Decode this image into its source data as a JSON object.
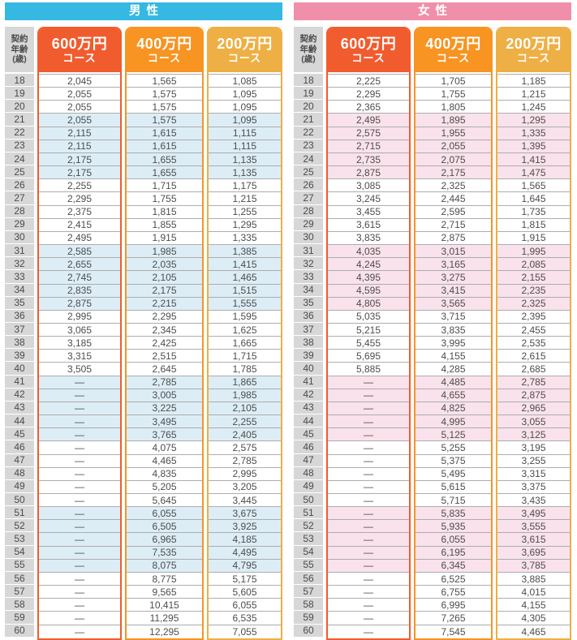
{
  "tables": [
    {
      "id": "male",
      "banner": "男性",
      "banner_color": "#35b8e1",
      "highlight_color": "#dcedf6",
      "age_header_lines": [
        "契約",
        "年齢",
        "(歳)"
      ],
      "columns": [
        {
          "amount": "600万円",
          "course": "コース",
          "color": "#f15c2f"
        },
        {
          "amount": "400万円",
          "course": "コース",
          "color": "#f79422"
        },
        {
          "amount": "200万円",
          "course": "コース",
          "color": "#eeaf44"
        }
      ],
      "rows": [
        {
          "age": "18",
          "values": [
            "2,045",
            "1,565",
            "1,085"
          ],
          "highlight": false
        },
        {
          "age": "19",
          "values": [
            "2,055",
            "1,575",
            "1,095"
          ],
          "highlight": false
        },
        {
          "age": "20",
          "values": [
            "2,055",
            "1,575",
            "1,095"
          ],
          "highlight": false
        },
        {
          "age": "21",
          "values": [
            "2,055",
            "1,575",
            "1,095"
          ],
          "highlight": true
        },
        {
          "age": "22",
          "values": [
            "2,115",
            "1,615",
            "1,115"
          ],
          "highlight": true
        },
        {
          "age": "23",
          "values": [
            "2,115",
            "1,615",
            "1,115"
          ],
          "highlight": true
        },
        {
          "age": "24",
          "values": [
            "2,175",
            "1,655",
            "1,135"
          ],
          "highlight": true
        },
        {
          "age": "25",
          "values": [
            "2,175",
            "1,655",
            "1,135"
          ],
          "highlight": true
        },
        {
          "age": "26",
          "values": [
            "2,255",
            "1,715",
            "1,175"
          ],
          "highlight": false
        },
        {
          "age": "27",
          "values": [
            "2,295",
            "1,755",
            "1,215"
          ],
          "highlight": false
        },
        {
          "age": "28",
          "values": [
            "2,375",
            "1,815",
            "1,255"
          ],
          "highlight": false
        },
        {
          "age": "29",
          "values": [
            "2,415",
            "1,855",
            "1,295"
          ],
          "highlight": false
        },
        {
          "age": "30",
          "values": [
            "2,495",
            "1,915",
            "1,335"
          ],
          "highlight": false
        },
        {
          "age": "31",
          "values": [
            "2,585",
            "1,985",
            "1,385"
          ],
          "highlight": true
        },
        {
          "age": "32",
          "values": [
            "2,655",
            "2,035",
            "1,415"
          ],
          "highlight": true
        },
        {
          "age": "33",
          "values": [
            "2,745",
            "2,105",
            "1,465"
          ],
          "highlight": true
        },
        {
          "age": "34",
          "values": [
            "2,835",
            "2,175",
            "1,515"
          ],
          "highlight": true
        },
        {
          "age": "35",
          "values": [
            "2,875",
            "2,215",
            "1,555"
          ],
          "highlight": true
        },
        {
          "age": "36",
          "values": [
            "2,995",
            "2,295",
            "1,595"
          ],
          "highlight": false
        },
        {
          "age": "37",
          "values": [
            "3,065",
            "2,345",
            "1,625"
          ],
          "highlight": false
        },
        {
          "age": "38",
          "values": [
            "3,185",
            "2,425",
            "1,665"
          ],
          "highlight": false
        },
        {
          "age": "39",
          "values": [
            "3,315",
            "2,515",
            "1,715"
          ],
          "highlight": false
        },
        {
          "age": "40",
          "values": [
            "3,505",
            "2,645",
            "1,785"
          ],
          "highlight": false
        },
        {
          "age": "41",
          "values": [
            "—",
            "2,785",
            "1,865"
          ],
          "highlight": true
        },
        {
          "age": "42",
          "values": [
            "—",
            "3,005",
            "1,985"
          ],
          "highlight": true
        },
        {
          "age": "43",
          "values": [
            "—",
            "3,225",
            "2,105"
          ],
          "highlight": true
        },
        {
          "age": "44",
          "values": [
            "—",
            "3,495",
            "2,255"
          ],
          "highlight": true
        },
        {
          "age": "45",
          "values": [
            "—",
            "3,765",
            "2,405"
          ],
          "highlight": true
        },
        {
          "age": "46",
          "values": [
            "—",
            "4,075",
            "2,575"
          ],
          "highlight": false
        },
        {
          "age": "47",
          "values": [
            "—",
            "4,465",
            "2,785"
          ],
          "highlight": false
        },
        {
          "age": "48",
          "values": [
            "—",
            "4,835",
            "2,995"
          ],
          "highlight": false
        },
        {
          "age": "49",
          "values": [
            "—",
            "5,205",
            "3,205"
          ],
          "highlight": false
        },
        {
          "age": "50",
          "values": [
            "—",
            "5,645",
            "3,445"
          ],
          "highlight": false
        },
        {
          "age": "51",
          "values": [
            "—",
            "6,055",
            "3,675"
          ],
          "highlight": true
        },
        {
          "age": "52",
          "values": [
            "—",
            "6,505",
            "3,925"
          ],
          "highlight": true
        },
        {
          "age": "53",
          "values": [
            "—",
            "6,965",
            "4,185"
          ],
          "highlight": true
        },
        {
          "age": "54",
          "values": [
            "—",
            "7,535",
            "4,495"
          ],
          "highlight": true
        },
        {
          "age": "55",
          "values": [
            "—",
            "8,075",
            "4,795"
          ],
          "highlight": true
        },
        {
          "age": "56",
          "values": [
            "—",
            "8,775",
            "5,175"
          ],
          "highlight": false
        },
        {
          "age": "57",
          "values": [
            "—",
            "9,565",
            "5,605"
          ],
          "highlight": false
        },
        {
          "age": "58",
          "values": [
            "—",
            "10,415",
            "6,055"
          ],
          "highlight": false
        },
        {
          "age": "59",
          "values": [
            "—",
            "11,295",
            "6,535"
          ],
          "highlight": false
        },
        {
          "age": "60",
          "values": [
            "—",
            "12,295",
            "7,055"
          ],
          "highlight": false
        }
      ]
    },
    {
      "id": "female",
      "banner": "女性",
      "banner_color": "#f08fa9",
      "highlight_color": "#f9e2eb",
      "age_header_lines": [
        "契約",
        "年齢",
        "(歳)"
      ],
      "columns": [
        {
          "amount": "600万円",
          "course": "コース",
          "color": "#f15c2f"
        },
        {
          "amount": "400万円",
          "course": "コース",
          "color": "#f79422"
        },
        {
          "amount": "200万円",
          "course": "コース",
          "color": "#eeaf44"
        }
      ],
      "rows": [
        {
          "age": "18",
          "values": [
            "2,225",
            "1,705",
            "1,185"
          ],
          "highlight": false
        },
        {
          "age": "19",
          "values": [
            "2,295",
            "1,755",
            "1,215"
          ],
          "highlight": false
        },
        {
          "age": "20",
          "values": [
            "2,365",
            "1,805",
            "1,245"
          ],
          "highlight": false
        },
        {
          "age": "21",
          "values": [
            "2,495",
            "1,895",
            "1,295"
          ],
          "highlight": true
        },
        {
          "age": "22",
          "values": [
            "2,575",
            "1,955",
            "1,335"
          ],
          "highlight": true
        },
        {
          "age": "23",
          "values": [
            "2,715",
            "2,055",
            "1,395"
          ],
          "highlight": true
        },
        {
          "age": "24",
          "values": [
            "2,735",
            "2,075",
            "1,415"
          ],
          "highlight": true
        },
        {
          "age": "25",
          "values": [
            "2,875",
            "2,175",
            "1,475"
          ],
          "highlight": true
        },
        {
          "age": "26",
          "values": [
            "3,085",
            "2,325",
            "1,565"
          ],
          "highlight": false
        },
        {
          "age": "27",
          "values": [
            "3,245",
            "2,445",
            "1,645"
          ],
          "highlight": false
        },
        {
          "age": "28",
          "values": [
            "3,455",
            "2,595",
            "1,735"
          ],
          "highlight": false
        },
        {
          "age": "29",
          "values": [
            "3,615",
            "2,715",
            "1,815"
          ],
          "highlight": false
        },
        {
          "age": "30",
          "values": [
            "3,835",
            "2,875",
            "1,915"
          ],
          "highlight": false
        },
        {
          "age": "31",
          "values": [
            "4,035",
            "3,015",
            "1,995"
          ],
          "highlight": true
        },
        {
          "age": "32",
          "values": [
            "4,245",
            "3,165",
            "2,085"
          ],
          "highlight": true
        },
        {
          "age": "33",
          "values": [
            "4,395",
            "3,275",
            "2,155"
          ],
          "highlight": true
        },
        {
          "age": "34",
          "values": [
            "4,595",
            "3,415",
            "2,235"
          ],
          "highlight": true
        },
        {
          "age": "35",
          "values": [
            "4,805",
            "3,565",
            "2,325"
          ],
          "highlight": true
        },
        {
          "age": "36",
          "values": [
            "5,035",
            "3,715",
            "2,395"
          ],
          "highlight": false
        },
        {
          "age": "37",
          "values": [
            "5,215",
            "3,835",
            "2,455"
          ],
          "highlight": false
        },
        {
          "age": "38",
          "values": [
            "5,455",
            "3,995",
            "2,535"
          ],
          "highlight": false
        },
        {
          "age": "39",
          "values": [
            "5,695",
            "4,155",
            "2,615"
          ],
          "highlight": false
        },
        {
          "age": "40",
          "values": [
            "5,885",
            "4,285",
            "2,685"
          ],
          "highlight": false
        },
        {
          "age": "41",
          "values": [
            "—",
            "4,485",
            "2,785"
          ],
          "highlight": true
        },
        {
          "age": "42",
          "values": [
            "—",
            "4,655",
            "2,875"
          ],
          "highlight": true
        },
        {
          "age": "43",
          "values": [
            "—",
            "4,825",
            "2,965"
          ],
          "highlight": true
        },
        {
          "age": "44",
          "values": [
            "—",
            "4,995",
            "3,055"
          ],
          "highlight": true
        },
        {
          "age": "45",
          "values": [
            "—",
            "5,125",
            "3,125"
          ],
          "highlight": true
        },
        {
          "age": "46",
          "values": [
            "—",
            "5,255",
            "3,195"
          ],
          "highlight": false
        },
        {
          "age": "47",
          "values": [
            "—",
            "5,375",
            "3,255"
          ],
          "highlight": false
        },
        {
          "age": "48",
          "values": [
            "—",
            "5,495",
            "3,315"
          ],
          "highlight": false
        },
        {
          "age": "49",
          "values": [
            "—",
            "5,615",
            "3,375"
          ],
          "highlight": false
        },
        {
          "age": "50",
          "values": [
            "—",
            "5,715",
            "3,435"
          ],
          "highlight": false
        },
        {
          "age": "51",
          "values": [
            "—",
            "5,835",
            "3,495"
          ],
          "highlight": true
        },
        {
          "age": "52",
          "values": [
            "—",
            "5,935",
            "3,555"
          ],
          "highlight": true
        },
        {
          "age": "53",
          "values": [
            "—",
            "6,055",
            "3,615"
          ],
          "highlight": true
        },
        {
          "age": "54",
          "values": [
            "—",
            "6,195",
            "3,695"
          ],
          "highlight": true
        },
        {
          "age": "55",
          "values": [
            "—",
            "6,345",
            "3,785"
          ],
          "highlight": true
        },
        {
          "age": "56",
          "values": [
            "—",
            "6,525",
            "3,885"
          ],
          "highlight": false
        },
        {
          "age": "57",
          "values": [
            "—",
            "6,755",
            "4,015"
          ],
          "highlight": false
        },
        {
          "age": "58",
          "values": [
            "—",
            "6,995",
            "4,155"
          ],
          "highlight": false
        },
        {
          "age": "59",
          "values": [
            "—",
            "7,265",
            "4,305"
          ],
          "highlight": false
        },
        {
          "age": "60",
          "values": [
            "—",
            "7,545",
            "4,465"
          ],
          "highlight": false
        }
      ]
    }
  ]
}
